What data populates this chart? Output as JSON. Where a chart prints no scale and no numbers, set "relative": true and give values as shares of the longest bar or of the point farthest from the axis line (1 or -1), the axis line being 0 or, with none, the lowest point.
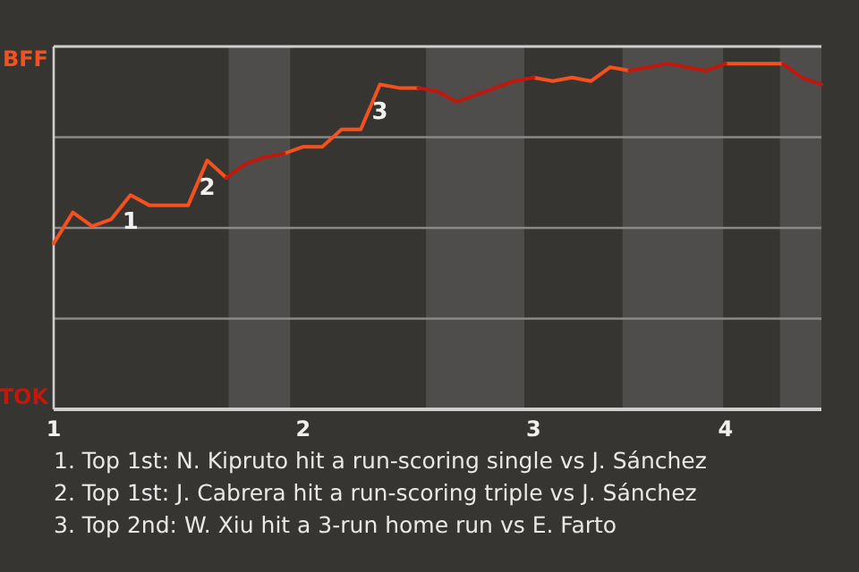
{
  "chart_data": {
    "type": "line",
    "relative": true,
    "categories": [
      "1",
      null,
      null,
      null,
      null,
      null,
      null,
      null,
      null,
      null,
      null,
      null,
      null,
      "2",
      null,
      null,
      null,
      null,
      null,
      null,
      null,
      null,
      null,
      null,
      null,
      "3",
      null,
      null,
      null,
      null,
      null,
      null,
      null,
      null,
      null,
      "4",
      null,
      null,
      null,
      null,
      null
    ],
    "grid": "y",
    "marker": "none",
    "line_style": "solid",
    "series": [
      {
        "color": "#f4511e",
        "values": [
          0.48,
          0.57,
          0.53,
          0.55,
          0.62,
          0.59,
          0.59,
          0.59,
          0.72,
          0.67,
          null,
          null,
          0.74,
          0.76,
          0.76,
          0.81,
          0.81,
          0.94,
          0.93,
          0.93,
          null,
          null,
          null,
          null,
          null,
          0.96,
          0.95,
          0.96,
          0.95,
          0.99,
          0.98,
          null,
          null,
          null,
          null,
          1,
          1,
          1,
          1,
          null,
          null
        ]
      },
      {
        "color": "#c0180c",
        "values": [
          null,
          null,
          null,
          null,
          null,
          null,
          null,
          null,
          null,
          0.67,
          0.71,
          0.73,
          0.74,
          null,
          null,
          null,
          null,
          null,
          null,
          0.93,
          0.92,
          0.89,
          0.91,
          0.93,
          0.95,
          0.96,
          null,
          null,
          null,
          null,
          0.98,
          0.99,
          1,
          0.99,
          0.98,
          1,
          null,
          null,
          1,
          0.96,
          0.94
        ]
      }
    ],
    "annotations": [
      {
        "text": "1",
        "y": 0.62
      },
      {
        "text": "2",
        "y": 0.72
      },
      {
        "text": "3",
        "y": 0.94
      },
      "BFF",
      "TOK",
      "1. Top 1st: N. Kipruto hit a run-scoring single vs J. Sánchez",
      "2. Top 1st: J. Cabrera hit a run-scoring triple vs J. Sánchez",
      "3. Top 2nd: W. Xiu hit a 3-run home run vs E. Farto"
    ]
  }
}
